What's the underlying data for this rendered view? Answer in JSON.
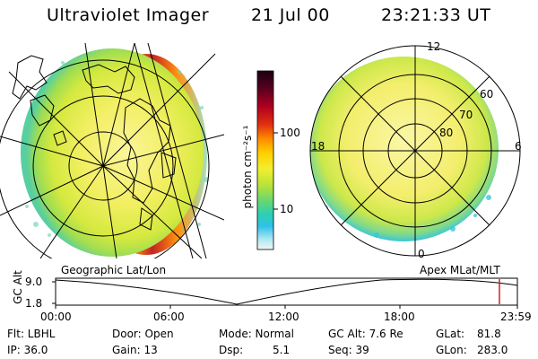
{
  "header": {
    "title": "Ultraviolet Imager",
    "date": "21 Jul 00",
    "time": "23:21:33 UT"
  },
  "left_panel": {
    "label": "Geographic Lat/Lon"
  },
  "right_panel": {
    "label": "Apex MLat/MLT",
    "mlt_labels": {
      "top": "12",
      "left": "18",
      "right": "6",
      "bottom": "0"
    },
    "lat_labels": [
      "60",
      "70",
      "80"
    ]
  },
  "colorbar": {
    "unit_label": "photon cm⁻²s⁻¹",
    "ticks": [
      "100",
      "10"
    ],
    "colors_top_to_bottom": [
      "#1a0010",
      "#5a0020",
      "#b00020",
      "#e03010",
      "#ff8a00",
      "#ffd000",
      "#f2ee30",
      "#b7e33a",
      "#6fd86a",
      "#2cd0b0",
      "#30c0e8",
      "#a8e8f2",
      "#f4f4f4"
    ]
  },
  "timeline": {
    "axis_label": "GC Alt",
    "ymax": "9.0",
    "ymin": "1.8",
    "ticks": [
      "00:00",
      "06:00",
      "12:00",
      "18:00",
      "23:59"
    ],
    "current_marker_color": "#d02020"
  },
  "info": {
    "filter": "Flt: LBHL",
    "ip": "IP: 36.0",
    "door": "Door: Open",
    "gain": "Gain: 13",
    "mode": "Mode: Normal",
    "dsp_label": "Dsp:",
    "dsp_value": "5.1",
    "gcalt": "GC Alt: 7.6 Re",
    "seq": "Seq: 39",
    "glat_label": "GLat:",
    "glat_value": "81.8",
    "glon_label": "GLon:",
    "glon_value": "283.0"
  }
}
